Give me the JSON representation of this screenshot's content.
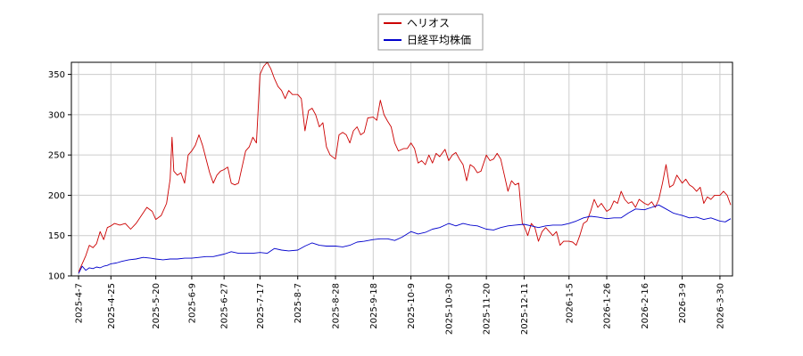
{
  "chart_data": {
    "type": "line",
    "title": "",
    "xlabel": "",
    "ylabel": "",
    "ylim": [
      100,
      365
    ],
    "yticks": [
      100,
      150,
      200,
      250,
      300,
      350
    ],
    "grid": true,
    "legend_position": "top-center",
    "xtick_labels": [
      "2025-4-7",
      "2025-4-25",
      "2025-5-20",
      "2025-6-9",
      "2025-6-27",
      "2025-7-17",
      "2025-8-7",
      "2025-8-28",
      "2025-9-18",
      "2025-10-9",
      "2025-10-30",
      "2025-11-20",
      "2025-12-11",
      "2026-1-5",
      "2026-1-26",
      "2026-2-16",
      "2026-3-9",
      "2026-3-30"
    ],
    "series": [
      {
        "name": "ヘリオス",
        "color": "#cc0000",
        "points": [
          [
            "2025-4-7",
            105
          ],
          [
            "2025-4-9",
            115
          ],
          [
            "2025-4-11",
            125
          ],
          [
            "2025-4-13",
            138
          ],
          [
            "2025-4-15",
            135
          ],
          [
            "2025-4-17",
            140
          ],
          [
            "2025-4-19",
            155
          ],
          [
            "2025-4-21",
            145
          ],
          [
            "2025-4-23",
            160
          ],
          [
            "2025-4-25",
            162
          ],
          [
            "2025-4-27",
            165
          ],
          [
            "2025-4-30",
            163
          ],
          [
            "2025-5-3",
            165
          ],
          [
            "2025-5-6",
            158
          ],
          [
            "2025-5-9",
            165
          ],
          [
            "2025-5-12",
            175
          ],
          [
            "2025-5-15",
            185
          ],
          [
            "2025-5-18",
            180
          ],
          [
            "2025-5-20",
            170
          ],
          [
            "2025-5-23",
            175
          ],
          [
            "2025-5-26",
            190
          ],
          [
            "2025-5-28",
            220
          ],
          [
            "2025-5-29",
            272
          ],
          [
            "2025-5-30",
            230
          ],
          [
            "2025-6-1",
            225
          ],
          [
            "2025-6-3",
            228
          ],
          [
            "2025-6-5",
            215
          ],
          [
            "2025-6-7",
            250
          ],
          [
            "2025-6-9",
            255
          ],
          [
            "2025-6-11",
            262
          ],
          [
            "2025-6-13",
            275
          ],
          [
            "2025-6-15",
            262
          ],
          [
            "2025-6-17",
            245
          ],
          [
            "2025-6-19",
            228
          ],
          [
            "2025-6-21",
            215
          ],
          [
            "2025-6-23",
            225
          ],
          [
            "2025-6-25",
            230
          ],
          [
            "2025-6-27",
            232
          ],
          [
            "2025-6-29",
            235
          ],
          [
            "2025-7-1",
            215
          ],
          [
            "2025-7-3",
            213
          ],
          [
            "2025-7-5",
            215
          ],
          [
            "2025-7-7",
            235
          ],
          [
            "2025-7-9",
            255
          ],
          [
            "2025-7-11",
            260
          ],
          [
            "2025-7-13",
            272
          ],
          [
            "2025-7-15",
            265
          ],
          [
            "2025-7-17",
            350
          ],
          [
            "2025-7-19",
            360
          ],
          [
            "2025-7-21",
            365
          ],
          [
            "2025-7-23",
            357
          ],
          [
            "2025-7-25",
            345
          ],
          [
            "2025-7-27",
            335
          ],
          [
            "2025-7-29",
            330
          ],
          [
            "2025-7-31",
            320
          ],
          [
            "2025-8-2",
            330
          ],
          [
            "2025-8-4",
            325
          ],
          [
            "2025-8-7",
            325
          ],
          [
            "2025-8-9",
            320
          ],
          [
            "2025-8-11",
            280
          ],
          [
            "2025-8-13",
            305
          ],
          [
            "2025-8-15",
            308
          ],
          [
            "2025-8-17",
            300
          ],
          [
            "2025-8-19",
            285
          ],
          [
            "2025-8-21",
            290
          ],
          [
            "2025-8-23",
            260
          ],
          [
            "2025-8-25",
            250
          ],
          [
            "2025-8-28",
            245
          ],
          [
            "2025-8-30",
            275
          ],
          [
            "2025-9-1",
            278
          ],
          [
            "2025-9-3",
            275
          ],
          [
            "2025-9-5",
            265
          ],
          [
            "2025-9-7",
            280
          ],
          [
            "2025-9-9",
            285
          ],
          [
            "2025-9-11",
            275
          ],
          [
            "2025-9-13",
            278
          ],
          [
            "2025-9-15",
            296
          ],
          [
            "2025-9-18",
            297
          ],
          [
            "2025-9-20",
            293
          ],
          [
            "2025-9-22",
            318
          ],
          [
            "2025-9-24",
            300
          ],
          [
            "2025-9-26",
            292
          ],
          [
            "2025-9-28",
            285
          ],
          [
            "2025-9-30",
            265
          ],
          [
            "2025-10-2",
            255
          ],
          [
            "2025-10-5",
            258
          ],
          [
            "2025-10-7",
            258
          ],
          [
            "2025-10-9",
            265
          ],
          [
            "2025-10-11",
            258
          ],
          [
            "2025-10-13",
            240
          ],
          [
            "2025-10-15",
            243
          ],
          [
            "2025-10-17",
            238
          ],
          [
            "2025-10-19",
            250
          ],
          [
            "2025-10-21",
            240
          ],
          [
            "2025-10-23",
            252
          ],
          [
            "2025-10-25",
            248
          ],
          [
            "2025-10-28",
            257
          ],
          [
            "2025-10-30",
            243
          ],
          [
            "2025-11-1",
            250
          ],
          [
            "2025-11-3",
            253
          ],
          [
            "2025-11-5",
            245
          ],
          [
            "2025-11-7",
            238
          ],
          [
            "2025-11-9",
            218
          ],
          [
            "2025-11-11",
            238
          ],
          [
            "2025-11-13",
            235
          ],
          [
            "2025-11-15",
            228
          ],
          [
            "2025-11-17",
            230
          ],
          [
            "2025-11-20",
            250
          ],
          [
            "2025-11-22",
            243
          ],
          [
            "2025-11-24",
            245
          ],
          [
            "2025-11-26",
            252
          ],
          [
            "2025-11-28",
            245
          ],
          [
            "2025-11-30",
            225
          ],
          [
            "2025-12-2",
            205
          ],
          [
            "2025-12-4",
            218
          ],
          [
            "2025-12-6",
            213
          ],
          [
            "2025-12-8",
            215
          ],
          [
            "2025-12-10",
            165
          ],
          [
            "2025-12-11",
            162
          ],
          [
            "2025-12-13",
            150
          ],
          [
            "2025-12-15",
            165
          ],
          [
            "2025-12-17",
            160
          ],
          [
            "2025-12-19",
            143
          ],
          [
            "2025-12-21",
            155
          ],
          [
            "2025-12-23",
            160
          ],
          [
            "2025-12-25",
            155
          ],
          [
            "2025-12-27",
            150
          ],
          [
            "2025-12-29",
            155
          ],
          [
            "2025-12-31",
            138
          ],
          [
            "2026-1-2",
            143
          ],
          [
            "2026-1-5",
            143
          ],
          [
            "2026-1-7",
            142
          ],
          [
            "2026-1-9",
            138
          ],
          [
            "2026-1-11",
            150
          ],
          [
            "2026-1-13",
            165
          ],
          [
            "2026-1-15",
            168
          ],
          [
            "2026-1-17",
            180
          ],
          [
            "2026-1-19",
            195
          ],
          [
            "2026-1-21",
            185
          ],
          [
            "2026-1-23",
            190
          ],
          [
            "2026-1-26",
            180
          ],
          [
            "2026-1-28",
            183
          ],
          [
            "2026-1-30",
            193
          ],
          [
            "2026-2-1",
            190
          ],
          [
            "2026-2-3",
            205
          ],
          [
            "2026-2-5",
            195
          ],
          [
            "2026-2-7",
            190
          ],
          [
            "2026-2-9",
            192
          ],
          [
            "2026-2-11",
            185
          ],
          [
            "2026-2-13",
            195
          ],
          [
            "2026-2-16",
            190
          ],
          [
            "2026-2-18",
            188
          ],
          [
            "2026-2-20",
            192
          ],
          [
            "2026-2-22",
            185
          ],
          [
            "2026-2-24",
            195
          ],
          [
            "2026-2-26",
            215
          ],
          [
            "2026-2-28",
            238
          ],
          [
            "2026-3-2",
            210
          ],
          [
            "2026-3-4",
            213
          ],
          [
            "2026-3-6",
            225
          ],
          [
            "2026-3-9",
            215
          ],
          [
            "2026-3-11",
            220
          ],
          [
            "2026-3-13",
            213
          ],
          [
            "2026-3-15",
            210
          ],
          [
            "2026-3-17",
            205
          ],
          [
            "2026-3-19",
            210
          ],
          [
            "2026-3-21",
            190
          ],
          [
            "2026-3-23",
            198
          ],
          [
            "2026-3-25",
            195
          ],
          [
            "2026-3-27",
            200
          ],
          [
            "2026-3-30",
            200
          ],
          [
            "2026-4-1",
            205
          ],
          [
            "2026-4-3",
            200
          ],
          [
            "2026-4-5",
            188
          ]
        ]
      },
      {
        "name": "日経平均株価",
        "color": "#0000cc",
        "points": [
          [
            "2025-4-7",
            103
          ],
          [
            "2025-4-9",
            112
          ],
          [
            "2025-4-11",
            107
          ],
          [
            "2025-4-13",
            110
          ],
          [
            "2025-4-15",
            109
          ],
          [
            "2025-4-17",
            111
          ],
          [
            "2025-4-19",
            110
          ],
          [
            "2025-4-21",
            112
          ],
          [
            "2025-4-23",
            113
          ],
          [
            "2025-4-25",
            115
          ],
          [
            "2025-4-28",
            116
          ],
          [
            "2025-5-1",
            118
          ],
          [
            "2025-5-5",
            120
          ],
          [
            "2025-5-9",
            121
          ],
          [
            "2025-5-13",
            123
          ],
          [
            "2025-5-17",
            122
          ],
          [
            "2025-5-20",
            121
          ],
          [
            "2025-5-24",
            120
          ],
          [
            "2025-5-28",
            121
          ],
          [
            "2025-6-1",
            121
          ],
          [
            "2025-6-5",
            122
          ],
          [
            "2025-6-9",
            122
          ],
          [
            "2025-6-13",
            123
          ],
          [
            "2025-6-17",
            124
          ],
          [
            "2025-6-21",
            124
          ],
          [
            "2025-6-27",
            127
          ],
          [
            "2025-7-1",
            130
          ],
          [
            "2025-7-5",
            128
          ],
          [
            "2025-7-9",
            128
          ],
          [
            "2025-7-13",
            128
          ],
          [
            "2025-7-17",
            129
          ],
          [
            "2025-7-21",
            128
          ],
          [
            "2025-7-25",
            134
          ],
          [
            "2025-7-29",
            132
          ],
          [
            "2025-8-2",
            131
          ],
          [
            "2025-8-7",
            132
          ],
          [
            "2025-8-11",
            137
          ],
          [
            "2025-8-15",
            141
          ],
          [
            "2025-8-19",
            138
          ],
          [
            "2025-8-23",
            137
          ],
          [
            "2025-8-28",
            137
          ],
          [
            "2025-9-1",
            136
          ],
          [
            "2025-9-5",
            138
          ],
          [
            "2025-9-9",
            142
          ],
          [
            "2025-9-13",
            143
          ],
          [
            "2025-9-18",
            145
          ],
          [
            "2025-9-22",
            146
          ],
          [
            "2025-9-26",
            146
          ],
          [
            "2025-9-30",
            144
          ],
          [
            "2025-10-4",
            148
          ],
          [
            "2025-10-9",
            155
          ],
          [
            "2025-10-13",
            152
          ],
          [
            "2025-10-17",
            154
          ],
          [
            "2025-10-21",
            158
          ],
          [
            "2025-10-25",
            160
          ],
          [
            "2025-10-30",
            165
          ],
          [
            "2025-11-3",
            162
          ],
          [
            "2025-11-7",
            165
          ],
          [
            "2025-11-11",
            163
          ],
          [
            "2025-11-15",
            162
          ],
          [
            "2025-11-20",
            158
          ],
          [
            "2025-11-24",
            157
          ],
          [
            "2025-11-28",
            160
          ],
          [
            "2025-12-2",
            162
          ],
          [
            "2025-12-6",
            163
          ],
          [
            "2025-12-11",
            164
          ],
          [
            "2025-12-15",
            162
          ],
          [
            "2025-12-19",
            160
          ],
          [
            "2025-12-23",
            162
          ],
          [
            "2025-12-27",
            163
          ],
          [
            "2026-1-1",
            163
          ],
          [
            "2026-1-5",
            165
          ],
          [
            "2026-1-9",
            168
          ],
          [
            "2026-1-13",
            172
          ],
          [
            "2026-1-17",
            174
          ],
          [
            "2026-1-21",
            173
          ],
          [
            "2026-1-26",
            171
          ],
          [
            "2026-1-30",
            172
          ],
          [
            "2026-2-3",
            172
          ],
          [
            "2026-2-7",
            178
          ],
          [
            "2026-2-11",
            183
          ],
          [
            "2026-2-16",
            182
          ],
          [
            "2026-2-20",
            185
          ],
          [
            "2026-2-24",
            188
          ],
          [
            "2026-2-28",
            183
          ],
          [
            "2026-3-4",
            178
          ],
          [
            "2026-3-9",
            175
          ],
          [
            "2026-3-13",
            172
          ],
          [
            "2026-3-17",
            173
          ],
          [
            "2026-3-21",
            170
          ],
          [
            "2026-3-25",
            172
          ],
          [
            "2026-3-30",
            168
          ],
          [
            "2026-4-2",
            167
          ],
          [
            "2026-4-5",
            171
          ]
        ]
      }
    ]
  }
}
